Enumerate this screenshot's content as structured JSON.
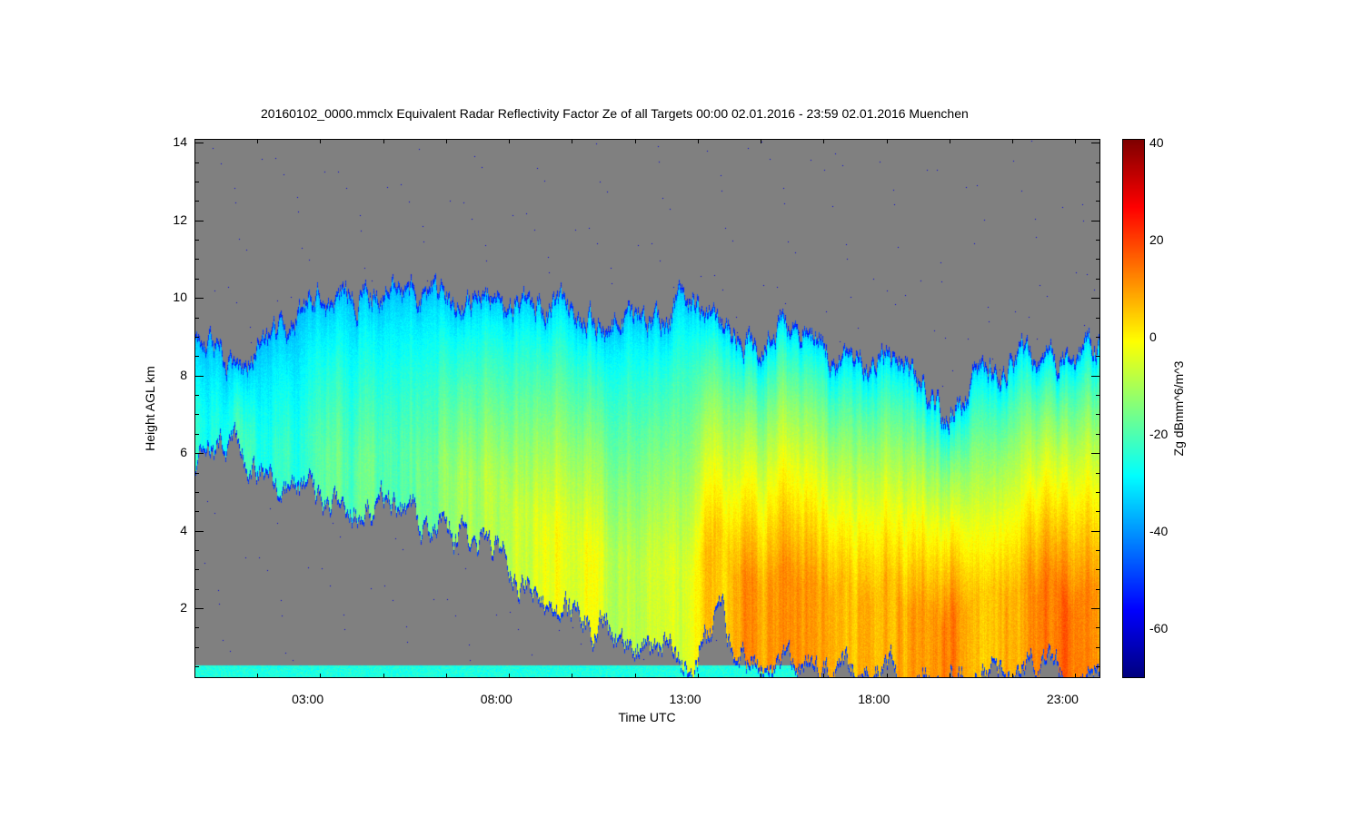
{
  "chart_data": {
    "type": "heatmap",
    "title": "20160102_0000.mmclx Equivalent Radar Reflectivity Factor Ze of all Targets   00:00 02.01.2016 - 23:59 02.01.2016 Muenchen",
    "xlabel": "Time UTC",
    "ylabel": "Height AGL km",
    "colorbar_label": "Zg dBmm^6/m^3",
    "xlim_hours": [
      0,
      24
    ],
    "ylim_km": [
      0.2,
      14.1
    ],
    "clim_dbz": [
      -70,
      41
    ],
    "colormap": "jet",
    "background_color": "#808080",
    "x_tick_labels": [
      {
        "hour": 3,
        "label": "03:00"
      },
      {
        "hour": 8,
        "label": "08:00"
      },
      {
        "hour": 13,
        "label": "13:00"
      },
      {
        "hour": 18,
        "label": "18:00"
      },
      {
        "hour": 23,
        "label": "23:00"
      }
    ],
    "y_tick_labels": [
      2,
      4,
      6,
      8,
      10,
      12,
      14
    ],
    "colorbar_ticks": [
      40,
      20,
      0,
      -20,
      -40,
      -60
    ],
    "cloud_profile": {
      "hour": [
        0,
        1,
        2,
        3,
        4,
        5,
        6,
        7,
        8,
        9,
        10,
        11,
        12,
        13,
        14,
        15,
        16,
        17,
        18,
        19,
        20,
        21,
        22,
        23,
        24
      ],
      "top_km": [
        9.0,
        8.3,
        8.8,
        10.0,
        10.2,
        10.2,
        10.1,
        10.0,
        9.9,
        9.9,
        9.7,
        9.5,
        9.3,
        10.0,
        9.5,
        8.8,
        9.7,
        8.8,
        8.3,
        8.3,
        6.9,
        8.3,
        8.6,
        8.6,
        8.6
      ],
      "base_km": [
        5.5,
        6.0,
        5.3,
        4.9,
        4.4,
        4.6,
        4.0,
        3.7,
        3.4,
        2.3,
        1.6,
        1.3,
        0.9,
        0.4,
        1.5,
        0.4,
        0.2,
        0.2,
        0.2,
        0.2,
        0.2,
        0.2,
        0.2,
        0.2,
        0.2
      ],
      "max_ze_dbz": [
        -22,
        -24,
        -22,
        -20,
        -18,
        -18,
        -16,
        -12,
        -6,
        -5,
        -5,
        -6,
        -4,
        -3,
        2,
        8,
        9,
        9,
        8,
        9,
        10,
        6,
        9,
        12,
        12
      ]
    },
    "surface_clutter": {
      "hours": [
        0,
        16
      ],
      "top_km": 0.5,
      "ze_dbz": -25
    }
  }
}
